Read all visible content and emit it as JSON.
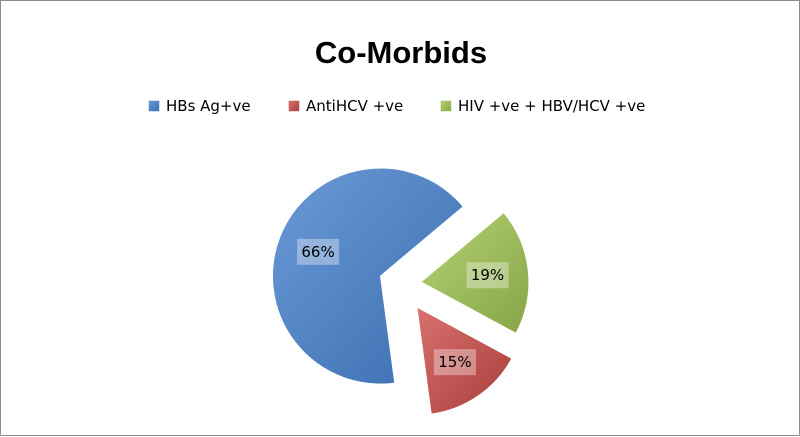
{
  "chart_data": {
    "type": "pie",
    "title": "Co-Morbids",
    "legend_position": "top",
    "labels": [
      "HBs Ag+ve",
      "AntiHCV +ve",
      "HIV +ve + HBV/HCV +ve"
    ],
    "values": [
      66,
      15,
      19
    ],
    "data_labels": [
      "66%",
      "15%",
      "19%"
    ],
    "colors": [
      "#4f81bd",
      "#c0504d",
      "#9bbb59"
    ],
    "exploded": true
  }
}
